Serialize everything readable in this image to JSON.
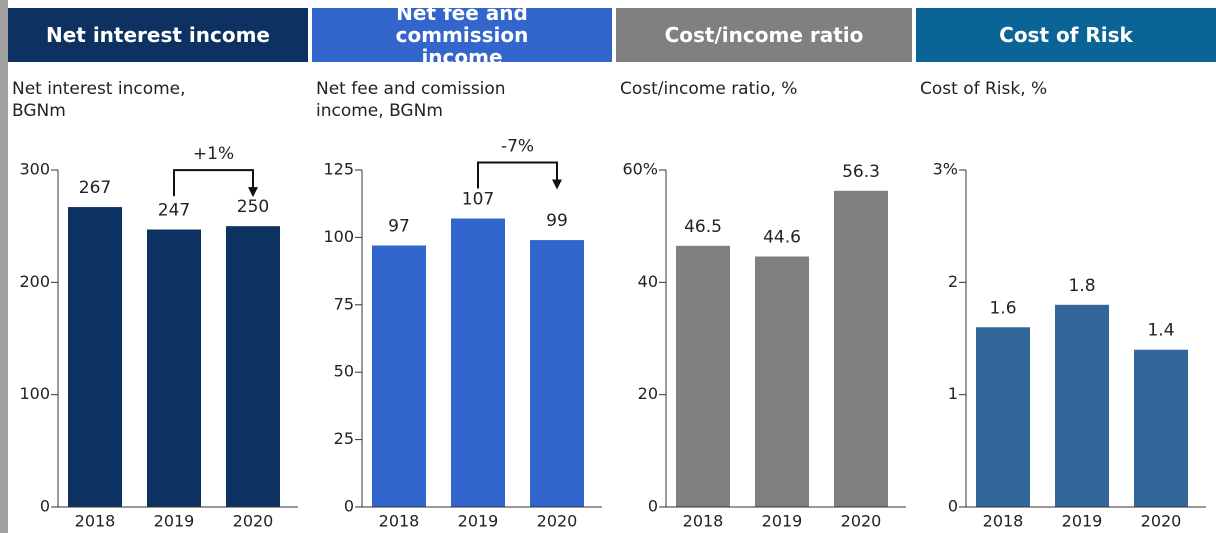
{
  "chart_data": [
    {
      "type": "bar",
      "header": "Net interest income",
      "header_color": "#0d3161",
      "subtitle": "Net interest income, BGNm",
      "color": "#0d3161",
      "categories": [
        "2018",
        "2019",
        "2020"
      ],
      "values": [
        267,
        247,
        250
      ],
      "ylim": [
        0,
        300
      ],
      "yticks": [
        0,
        100,
        200,
        300
      ],
      "annotation": "+1%"
    },
    {
      "type": "bar",
      "header": "Net fee and commission income",
      "header_color": "#3366cc",
      "subtitle": "Net fee and comission income, BGNm",
      "color": "#3366cc",
      "categories": [
        "2018",
        "2019",
        "2020"
      ],
      "values": [
        97,
        107,
        99
      ],
      "ylim": [
        0,
        125
      ],
      "yticks": [
        0,
        25,
        50,
        75,
        100,
        125
      ],
      "annotation": "-7%"
    },
    {
      "type": "bar",
      "header": "Cost/income ratio",
      "header_color": "#808080",
      "subtitle": "Cost/income ratio, %",
      "color": "#808080",
      "categories": [
        "2018",
        "2019",
        "2020"
      ],
      "values": [
        46.5,
        44.6,
        56.3
      ],
      "ylim": [
        0,
        60
      ],
      "yticks": [
        0,
        20,
        40,
        {
          "value": 60,
          "label": "60%"
        }
      ]
    },
    {
      "type": "bar",
      "header": "Cost of Risk",
      "header_color": "#0a6496",
      "subtitle": "Cost of Risk, %",
      "color": "#336699",
      "categories": [
        "2018",
        "2019",
        "2020"
      ],
      "values": [
        1.6,
        1.8,
        1.4
      ],
      "ylim": [
        0,
        3
      ],
      "yticks": [
        0,
        1,
        2,
        {
          "value": 3,
          "label": "3%"
        }
      ]
    }
  ]
}
